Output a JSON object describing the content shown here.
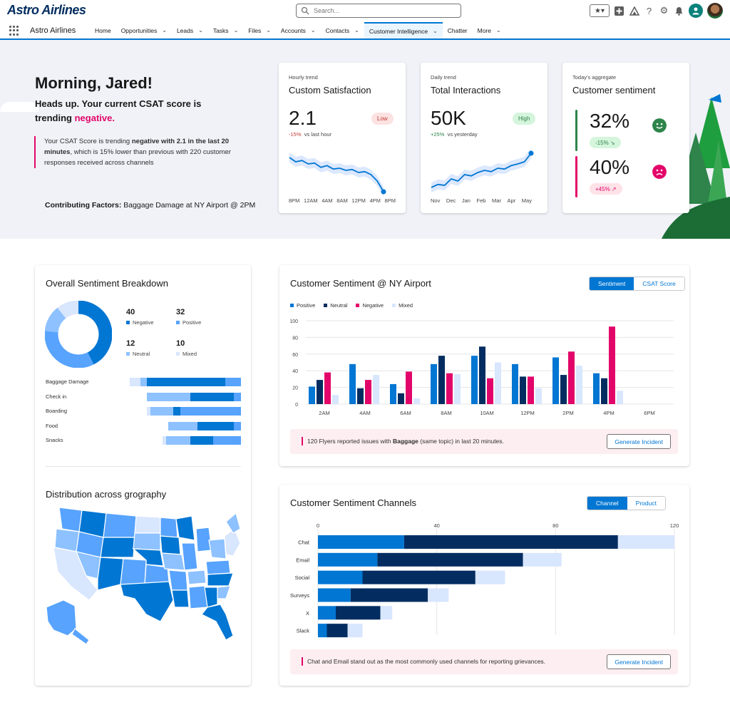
{
  "header": {
    "logo": "Astro Airlines",
    "search_placeholder": "Search...",
    "icons": [
      "favorites-star-icon",
      "add-icon",
      "trailhead-icon",
      "help-icon",
      "setup-gear-icon",
      "notification-bell-icon",
      "user-avatar",
      "profile-photo"
    ]
  },
  "nav": {
    "app_name": "Astro Airlines",
    "tabs": [
      {
        "label": "Home",
        "menu": false
      },
      {
        "label": "Opportunities",
        "menu": true
      },
      {
        "label": "Leads",
        "menu": true
      },
      {
        "label": "Tasks",
        "menu": true
      },
      {
        "label": "Files",
        "menu": true
      },
      {
        "label": "Accounts",
        "menu": true
      },
      {
        "label": "Contacts",
        "menu": true
      },
      {
        "label": "Customer Intelligence",
        "menu": true,
        "active": true
      },
      {
        "label": "Chatter",
        "menu": false
      },
      {
        "label": "More",
        "menu": true
      }
    ]
  },
  "hero": {
    "greeting": "Morning, Jared!",
    "headsup_prefix": "Heads up. Your current CSAT score is trending ",
    "headsup_negative": "negative.",
    "summary_1": "Your CSAT Score is trending ",
    "summary_bold": "negative with 2.1 in the last 20 minutes",
    "summary_2": ", which is 15% lower than previous with 220 customer responses received across channels",
    "factors_label": "Contributing Factors:",
    "factors_value": " Baggage Damage at NY Airport @ 2PM"
  },
  "kpis": {
    "satisfaction": {
      "sub": "Hourly trend",
      "title": "Custom Satisfaction",
      "value": "2.1",
      "badge": "Low",
      "delta": "-15%",
      "delta_note": "vs last hour",
      "ticks": [
        "8PM",
        "12AM",
        "4AM",
        "8AM",
        "12PM",
        "4PM",
        "8PM"
      ],
      "trend": [
        0.85,
        0.75,
        0.78,
        0.7,
        0.72,
        0.62,
        0.66,
        0.58,
        0.6,
        0.55,
        0.57,
        0.5,
        0.52,
        0.45,
        0.3,
        0.05
      ]
    },
    "interactions": {
      "sub": "Daily trend",
      "title": "Total Interactions",
      "value": "50K",
      "badge": "High",
      "delta": "+25%",
      "delta_note": "vs yesterday",
      "ticks": [
        "Nov",
        "Dec",
        "Jan",
        "Feb",
        "Mar",
        "Apr",
        "May"
      ],
      "trend": [
        0.15,
        0.22,
        0.2,
        0.35,
        0.3,
        0.45,
        0.42,
        0.5,
        0.55,
        0.52,
        0.6,
        0.58,
        0.66,
        0.7,
        0.75,
        0.95
      ]
    },
    "sentiment": {
      "sub": "Today's aggregate",
      "title": "Customer sentiment",
      "positive_pct": "32%",
      "positive_chip": "-15% ↘",
      "negative_pct": "40%",
      "negative_chip": "+45% ↗"
    }
  },
  "breakdown": {
    "title": "Overall Sentiment Breakdown",
    "legend": [
      {
        "value": "40",
        "label": "Negative",
        "color": "#0176d3"
      },
      {
        "value": "32",
        "label": "Positive",
        "color": "#57a3fd"
      },
      {
        "value": "12",
        "label": "Neutral",
        "color": "#8dc1ff"
      },
      {
        "value": "10",
        "label": "Mixed",
        "color": "#d8e6fe"
      }
    ],
    "rows": [
      {
        "label": "Baggage Damage",
        "segs": [
          0.06,
          0.04,
          0.45,
          0.09
        ]
      },
      {
        "label": "Check in",
        "segs": [
          0.0,
          0.25,
          0.25,
          0.04
        ]
      },
      {
        "label": "Boarding",
        "segs": [
          0.02,
          0.13,
          0.04,
          0.35
        ]
      },
      {
        "label": "Food",
        "segs": [
          0.0,
          0.17,
          0.21,
          0.04
        ]
      },
      {
        "label": "Snacks",
        "segs": [
          0.02,
          0.14,
          0.13,
          0.16
        ]
      }
    ],
    "map_title": "Distribution across grography"
  },
  "airport": {
    "title": "Customer Sentiment @ NY Airport",
    "toggle": [
      "Sentiment",
      "CSAT Score"
    ],
    "alert_prefix": "120 Flyers reported issues with ",
    "alert_bold": "Baggage",
    "alert_suffix": " (same topic) in last 20 minutes.",
    "button": "Generate Incident"
  },
  "channels": {
    "title": "Customer Sentiment Channels",
    "toggle": [
      "Channel",
      "Product"
    ],
    "alert": "Chat and Email stand out as the most commonly used channels for reporting grievances.",
    "button": "Generate Incident"
  },
  "chart_data": [
    {
      "type": "bar",
      "categories": [
        "2AM",
        "4AM",
        "6AM",
        "8AM",
        "10AM",
        "12PM",
        "2PM",
        "4PM",
        "6PM"
      ],
      "ylim": [
        0,
        100
      ],
      "yticks": [
        0,
        20,
        40,
        60,
        80,
        100
      ],
      "legend_position": "top-left",
      "series": [
        {
          "name": "Positive",
          "color": "#0176d3",
          "values": [
            21,
            48,
            24,
            48,
            58,
            48,
            56,
            37,
            null
          ]
        },
        {
          "name": "Neutral",
          "color": "#032d60",
          "values": [
            29,
            19,
            13,
            58,
            69,
            33,
            35,
            31,
            null
          ]
        },
        {
          "name": "Negative",
          "color": "#e3066a",
          "values": [
            38,
            29,
            39,
            37,
            31,
            33,
            63,
            93,
            null
          ]
        },
        {
          "name": "Mixed",
          "color": "#d8e6fe",
          "values": [
            11,
            35,
            7,
            36,
            50,
            19,
            46,
            16,
            null
          ]
        }
      ]
    },
    {
      "type": "bar",
      "orientation": "horizontal",
      "stacked": true,
      "categories": [
        "Chat",
        "Email",
        "Social",
        "Surveys",
        "X",
        "Slack"
      ],
      "xlim": [
        0,
        120
      ],
      "xticks": [
        0,
        40,
        80,
        120
      ],
      "series": [
        {
          "color": "#0176d3",
          "values": [
            29,
            20,
            15,
            11,
            6,
            3
          ]
        },
        {
          "color": "#032d60",
          "values": [
            72,
            49,
            38,
            26,
            15,
            7
          ]
        },
        {
          "color": "#d8e6fe",
          "values": [
            19,
            13,
            10,
            7,
            4,
            5
          ]
        }
      ]
    }
  ]
}
